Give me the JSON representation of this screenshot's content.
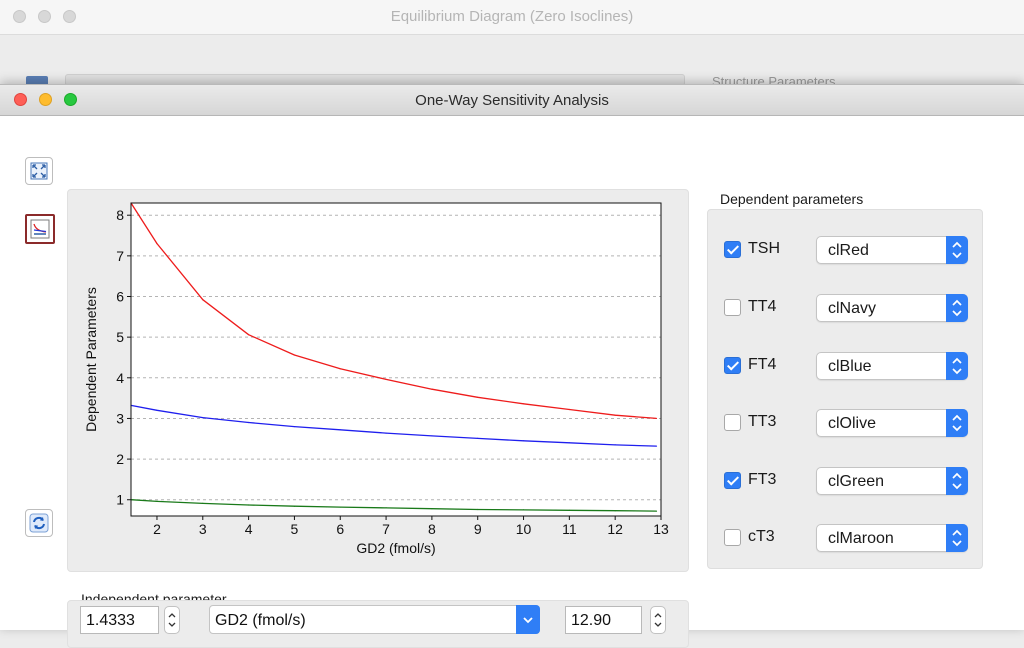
{
  "background_window": {
    "title": "Equilibrium Diagram (Zero Isoclines)",
    "side_label": "Structure Parameters"
  },
  "window": {
    "title": "One-Way Sensitivity Analysis"
  },
  "icons": {
    "fit": "fit-to-window-icon",
    "chart": "chart-icon",
    "refresh": "refresh-icon",
    "up": "chevron-up-icon",
    "down": "chevron-down-icon"
  },
  "dependent": {
    "heading": "Dependent parameters",
    "items": [
      {
        "label": "TSH",
        "checked": true,
        "color": "clRed",
        "hex": "#ee1c1c"
      },
      {
        "label": "TT4",
        "checked": false,
        "color": "clNavy",
        "hex": "#000080"
      },
      {
        "label": "FT4",
        "checked": true,
        "color": "clBlue",
        "hex": "#1f1fee"
      },
      {
        "label": "TT3",
        "checked": false,
        "color": "clOlive",
        "hex": "#808000"
      },
      {
        "label": "FT3",
        "checked": true,
        "color": "clGreen",
        "hex": "#1a7a1a"
      },
      {
        "label": "cT3",
        "checked": false,
        "color": "clMaroon",
        "hex": "#800000"
      }
    ]
  },
  "independent": {
    "heading": "Independent parameter",
    "min": "1.4333",
    "parameter": "GD2 (fmol/s)",
    "max": "12.90"
  },
  "chart_data": {
    "type": "line",
    "xlabel": "GD2 (fmol/s)",
    "ylabel": "Dependent Parameters",
    "xlim": [
      1.4333,
      13
    ],
    "ylim": [
      0.6,
      8.3
    ],
    "xticks": [
      2,
      3,
      4,
      5,
      6,
      7,
      8,
      9,
      10,
      11,
      12,
      13
    ],
    "yticks": [
      1,
      2,
      3,
      4,
      5,
      6,
      7,
      8
    ],
    "grid": "horizontal-dashed",
    "series": [
      {
        "color": "#ee1c1c",
        "x": [
          1.4333,
          2,
          3,
          4,
          5,
          6,
          7,
          8,
          9,
          10,
          11,
          12,
          12.9
        ],
        "y": [
          8.3,
          7.3,
          5.92,
          5.06,
          4.56,
          4.22,
          3.96,
          3.72,
          3.52,
          3.36,
          3.22,
          3.08,
          3.0
        ]
      },
      {
        "color": "#1f1fee",
        "x": [
          1.4333,
          2,
          3,
          4,
          5,
          6,
          7,
          8,
          9,
          10,
          11,
          12,
          12.9
        ],
        "y": [
          3.32,
          3.2,
          3.02,
          2.9,
          2.8,
          2.72,
          2.64,
          2.57,
          2.51,
          2.45,
          2.4,
          2.35,
          2.32
        ]
      },
      {
        "color": "#1a7a1a",
        "x": [
          1.4333,
          2,
          3,
          4,
          5,
          6,
          7,
          8,
          9,
          10,
          11,
          12,
          12.9
        ],
        "y": [
          1.0,
          0.96,
          0.91,
          0.87,
          0.84,
          0.82,
          0.8,
          0.78,
          0.76,
          0.75,
          0.74,
          0.73,
          0.72
        ]
      }
    ]
  }
}
